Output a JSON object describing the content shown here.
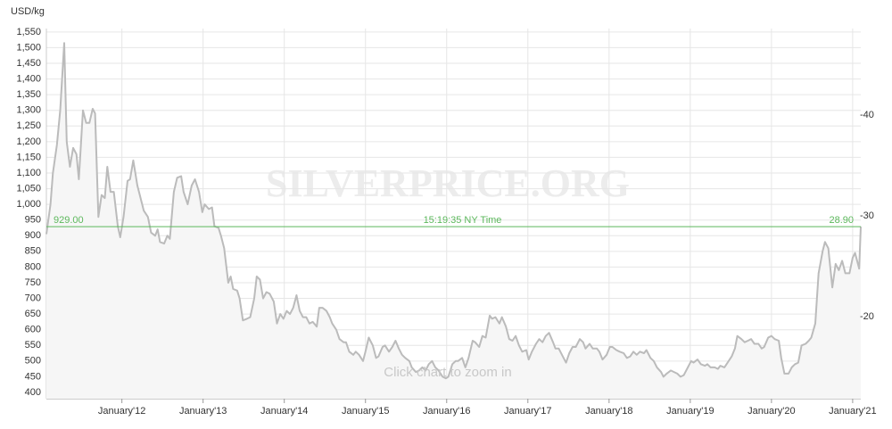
{
  "chart_data": {
    "type": "area",
    "y_label": "USD/kg",
    "watermark": "SILVERPRICE.ORG",
    "hint": "Click chart to zoom in",
    "color": "#bbbbbb",
    "fill_color": "#f6f6f6",
    "grid": true,
    "x": [
      2011.07,
      2011.12,
      2011.15,
      2011.2,
      2011.24,
      2011.29,
      2011.32,
      2011.36,
      2011.4,
      2011.44,
      2011.47,
      2011.52,
      2011.56,
      2011.6,
      2011.64,
      2011.67,
      2011.71,
      2011.75,
      2011.79,
      2011.82,
      2011.86,
      2011.9,
      2011.95,
      2011.98,
      2012.02,
      2012.07,
      2012.1,
      2012.14,
      2012.19,
      2012.23,
      2012.27,
      2012.32,
      2012.36,
      2012.41,
      2012.44,
      2012.47,
      2012.52,
      2012.56,
      2012.59,
      2012.64,
      2012.68,
      2012.73,
      2012.76,
      2012.81,
      2012.86,
      2012.9,
      2012.95,
      2012.99,
      2013.02,
      2013.07,
      2013.11,
      2013.14,
      2013.19,
      2013.22,
      2013.26,
      2013.31,
      2013.34,
      2013.37,
      2013.42,
      2013.45,
      2013.49,
      2013.54,
      2013.58,
      2013.63,
      2013.66,
      2013.7,
      2013.74,
      2013.78,
      2013.82,
      2013.87,
      2013.91,
      2013.95,
      2013.99,
      2014.03,
      2014.07,
      2014.11,
      2014.15,
      2014.19,
      2014.23,
      2014.27,
      2014.31,
      2014.35,
      2014.4,
      2014.43,
      2014.47,
      2014.52,
      2014.56,
      2014.59,
      2014.64,
      2014.68,
      2014.73,
      2014.76,
      2014.8,
      2014.85,
      2014.88,
      2014.92,
      2014.97,
      2015.0,
      2015.04,
      2015.09,
      2015.13,
      2015.16,
      2015.21,
      2015.24,
      2015.29,
      2015.33,
      2015.37,
      2015.41,
      2015.45,
      2015.49,
      2015.54,
      2015.57,
      2015.62,
      2015.66,
      2015.7,
      2015.74,
      2015.78,
      2015.82,
      2015.86,
      2015.9,
      2015.95,
      2015.99,
      2016.02,
      2016.07,
      2016.11,
      2016.14,
      2016.19,
      2016.23,
      2016.27,
      2016.32,
      2016.35,
      2016.4,
      2016.44,
      2016.48,
      2016.53,
      2016.56,
      2016.6,
      2016.65,
      2016.68,
      2016.73,
      2016.77,
      2016.81,
      2016.85,
      2016.89,
      2016.93,
      2016.98,
      2017.01,
      2017.05,
      2017.1,
      2017.14,
      2017.18,
      2017.22,
      2017.26,
      2017.31,
      2017.34,
      2017.38,
      2017.43,
      2017.47,
      2017.51,
      2017.55,
      2017.59,
      2017.64,
      2017.68,
      2017.71,
      2017.76,
      2017.8,
      2017.85,
      2017.88,
      2017.92,
      2017.97,
      2018.01,
      2018.04,
      2018.09,
      2018.13,
      2018.18,
      2018.22,
      2018.26,
      2018.3,
      2018.34,
      2018.38,
      2018.43,
      2018.46,
      2018.51,
      2018.55,
      2018.59,
      2018.64,
      2018.67,
      2018.71,
      2018.76,
      2018.8,
      2018.84,
      2018.88,
      2018.92,
      2018.97,
      2019.01,
      2019.04,
      2019.09,
      2019.13,
      2019.18,
      2019.21,
      2019.25,
      2019.3,
      2019.34,
      2019.37,
      2019.42,
      2019.46,
      2019.51,
      2019.55,
      2019.58,
      2019.63,
      2019.67,
      2019.71,
      2019.75,
      2019.79,
      2019.84,
      2019.88,
      2019.91,
      2019.96,
      2020.0,
      2020.04,
      2020.09,
      2020.12,
      2020.16,
      2020.21,
      2020.25,
      2020.29,
      2020.33,
      2020.37,
      2020.42,
      2020.46,
      2020.49,
      2020.54,
      2020.58,
      2020.63,
      2020.66,
      2020.7,
      2020.75,
      2020.79,
      2020.83,
      2020.87,
      2020.91,
      2020.96,
      2021.0,
      2021.03,
      2021.08,
      2021.1
    ],
    "values": [
      905,
      1000,
      1100,
      1190,
      1300,
      1515,
      1200,
      1120,
      1180,
      1160,
      1080,
      1300,
      1260,
      1260,
      1305,
      1290,
      960,
      1030,
      1020,
      1120,
      1040,
      1040,
      930,
      895,
      960,
      1075,
      1080,
      1140,
      1060,
      1020,
      980,
      960,
      910,
      900,
      920,
      880,
      875,
      900,
      890,
      1040,
      1085,
      1090,
      1040,
      1000,
      1060,
      1080,
      1040,
      975,
      1000,
      985,
      990,
      930,
      925,
      900,
      860,
      750,
      770,
      730,
      725,
      700,
      630,
      635,
      640,
      700,
      770,
      760,
      700,
      720,
      715,
      690,
      620,
      650,
      635,
      660,
      650,
      670,
      710,
      660,
      640,
      640,
      620,
      625,
      610,
      670,
      670,
      660,
      640,
      620,
      600,
      570,
      560,
      560,
      530,
      520,
      530,
      520,
      500,
      530,
      575,
      550,
      510,
      515,
      545,
      550,
      530,
      545,
      565,
      540,
      520,
      510,
      500,
      480,
      465,
      470,
      480,
      470,
      490,
      500,
      480,
      470,
      450,
      445,
      450,
      490,
      500,
      500,
      510,
      480,
      510,
      565,
      560,
      545,
      580,
      575,
      645,
      635,
      640,
      620,
      640,
      610,
      570,
      565,
      580,
      550,
      530,
      535,
      505,
      530,
      555,
      570,
      560,
      580,
      590,
      560,
      540,
      540,
      515,
      495,
      525,
      545,
      545,
      570,
      560,
      540,
      555,
      540,
      540,
      530,
      505,
      520,
      545,
      545,
      535,
      530,
      525,
      510,
      515,
      530,
      520,
      530,
      525,
      535,
      510,
      500,
      480,
      465,
      450,
      460,
      470,
      465,
      460,
      450,
      455,
      480,
      500,
      495,
      505,
      490,
      485,
      490,
      480,
      480,
      475,
      485,
      480,
      495,
      515,
      540,
      580,
      570,
      560,
      565,
      570,
      555,
      555,
      540,
      545,
      575,
      580,
      570,
      565,
      510,
      460,
      460,
      480,
      490,
      495,
      550,
      555,
      565,
      575,
      620,
      780,
      850,
      880,
      860,
      735,
      810,
      790,
      820,
      780,
      780,
      830,
      845,
      795,
      929
    ],
    "xlim": [
      2011.07,
      2021.1
    ],
    "xticks": [
      {
        "value": 2012,
        "label": "January'12"
      },
      {
        "value": 2013,
        "label": "January'13"
      },
      {
        "value": 2014,
        "label": "January'14"
      },
      {
        "value": 2015,
        "label": "January'15"
      },
      {
        "value": 2016,
        "label": "January'16"
      },
      {
        "value": 2017,
        "label": "January'17"
      },
      {
        "value": 2018,
        "label": "January'18"
      },
      {
        "value": 2019,
        "label": "January'19"
      },
      {
        "value": 2020,
        "label": "January'20"
      },
      {
        "value": 2021,
        "label": "January'21"
      }
    ],
    "ylim": [
      380,
      1561
    ],
    "yticks": [
      400,
      450,
      500,
      550,
      600,
      650,
      700,
      750,
      800,
      850,
      900,
      950,
      {
        "value": 1000,
        "label": "1,000"
      },
      {
        "value": 1050,
        "label": "1,050"
      },
      {
        "value": 1100,
        "label": "1,100"
      },
      {
        "value": 1150,
        "label": "1,150"
      },
      {
        "value": 1200,
        "label": "1,200"
      },
      {
        "value": 1250,
        "label": "1,250"
      },
      {
        "value": 1300,
        "label": "1,300"
      },
      {
        "value": 1350,
        "label": "1,350"
      },
      {
        "value": 1400,
        "label": "1,400"
      },
      {
        "value": 1450,
        "label": "1,450"
      },
      {
        "value": 1500,
        "label": "1,500"
      },
      {
        "value": 1550,
        "label": "1,550"
      }
    ],
    "y2lim": [
      11.86,
      48.58
    ],
    "y2ticks": [
      {
        "value": 20,
        "label": "-20"
      },
      {
        "value": 30,
        "label": "-30"
      },
      {
        "value": 40,
        "label": "-40"
      }
    ],
    "reference_line": {
      "value": 929,
      "label": "929.00",
      "value_y2": 28.9,
      "label_y2": "28.90",
      "text": "15:19:35 NY Time",
      "color": "#5cb85c"
    }
  }
}
